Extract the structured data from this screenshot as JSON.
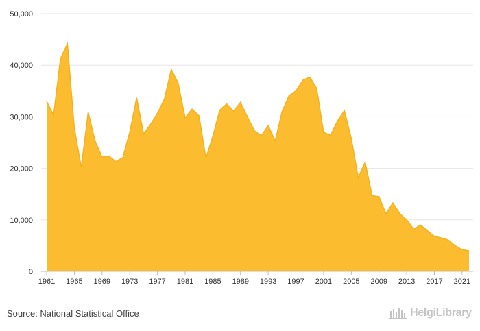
{
  "chart_data": {
    "type": "area",
    "x": [
      1961,
      1962,
      1963,
      1964,
      1965,
      1966,
      1967,
      1968,
      1969,
      1970,
      1971,
      1972,
      1973,
      1974,
      1975,
      1976,
      1977,
      1978,
      1979,
      1980,
      1981,
      1982,
      1983,
      1984,
      1985,
      1986,
      1987,
      1988,
      1989,
      1990,
      1991,
      1992,
      1993,
      1994,
      1995,
      1996,
      1997,
      1998,
      1999,
      2000,
      2001,
      2002,
      2003,
      2004,
      2005,
      2006,
      2007,
      2008,
      2009,
      2010,
      2011,
      2012,
      2013,
      2014,
      2015,
      2016,
      2017,
      2018,
      2019,
      2020,
      2021,
      2022
    ],
    "values": [
      33000,
      30300,
      41300,
      44200,
      27800,
      20200,
      30900,
      25300,
      22200,
      22400,
      21300,
      22100,
      27000,
      33700,
      26700,
      28500,
      30700,
      33400,
      39200,
      36500,
      29800,
      31500,
      30200,
      22000,
      26200,
      31300,
      32500,
      31100,
      32800,
      30000,
      27300,
      26300,
      28300,
      25300,
      31000,
      34100,
      35000,
      37100,
      37700,
      35500,
      27000,
      26400,
      29200,
      31200,
      25800,
      18200,
      21200,
      14700,
      14500,
      11200,
      13300,
      11200,
      10000,
      8200,
      9000,
      7900,
      6800,
      6500,
      6100,
      5000,
      4200,
      4000
    ],
    "x_tick_labels": [
      "1961",
      "1965",
      "1969",
      "1973",
      "1977",
      "1981",
      "1985",
      "1989",
      "1993",
      "1997",
      "2001",
      "2005",
      "2009",
      "2013",
      "2017",
      "2021"
    ],
    "y_tick_labels": [
      "0",
      "10,000",
      "20,000",
      "30,000",
      "40,000",
      "50,000"
    ],
    "ylim": [
      0,
      50000
    ],
    "title": "",
    "xlabel": "",
    "ylabel": "",
    "grid": "horizontal",
    "fill_color": "#fbbd2f",
    "line_color": "#f3b11f"
  },
  "footer": {
    "source": "Source: National Statistical Office",
    "brand": "HelgiLibrary"
  }
}
